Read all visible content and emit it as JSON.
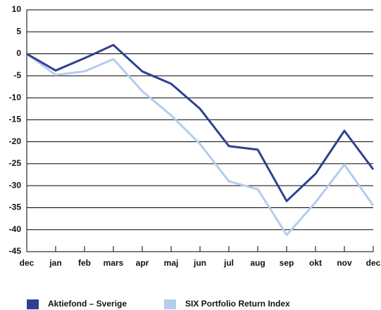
{
  "chart_data": {
    "type": "line",
    "categories": [
      "dec",
      "jan",
      "feb",
      "mars",
      "apr",
      "maj",
      "jun",
      "jul",
      "aug",
      "sep",
      "okt",
      "nov",
      "dec"
    ],
    "series": [
      {
        "name": "Aktiefond – Sverige",
        "color": "#2e4190",
        "values": [
          0,
          -3.8,
          -1,
          2,
          -4,
          -6.8,
          -12.5,
          -21,
          -21.8,
          -33.5,
          -27.3,
          -17.5,
          -26.3
        ]
      },
      {
        "name": "SIX Portfolio Return Index",
        "color": "#b3cdea",
        "values": [
          0,
          -4.8,
          -4,
          -1.2,
          -8.5,
          -14,
          -20.5,
          -29,
          -30.8,
          -41.2,
          -33.8,
          -25.2,
          -34.5
        ]
      }
    ],
    "ylim": [
      -45,
      10
    ],
    "yticks": [
      10,
      5,
      0,
      -5,
      -10,
      -15,
      -20,
      -25,
      -30,
      -35,
      -40,
      -45
    ],
    "grid": true
  }
}
